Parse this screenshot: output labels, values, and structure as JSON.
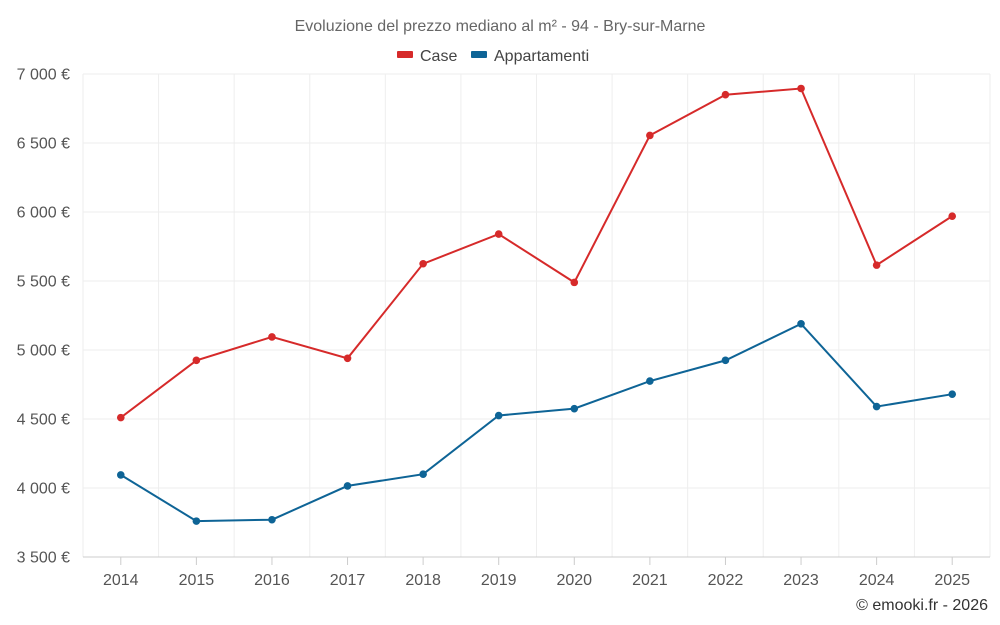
{
  "chart_data": {
    "type": "line",
    "title": "Evoluzione del prezzo mediano al m² - 94 - Bry-sur-Marne",
    "categories": [
      "2014",
      "2015",
      "2016",
      "2017",
      "2018",
      "2019",
      "2020",
      "2021",
      "2022",
      "2023",
      "2024",
      "2025"
    ],
    "series": [
      {
        "name": "Case",
        "color": "#d62a2a",
        "values": [
          4510,
          4925,
          5095,
          4940,
          5625,
          5840,
          5490,
          6555,
          6850,
          6895,
          5615,
          5970
        ]
      },
      {
        "name": "Appartamenti",
        "color": "#0e6496",
        "values": [
          4095,
          3760,
          3770,
          4015,
          4100,
          4525,
          4575,
          4775,
          4925,
          5190,
          4590,
          4680
        ]
      }
    ],
    "ylim": [
      3500,
      7000
    ],
    "yticks": [
      3500,
      4000,
      4500,
      5000,
      5500,
      6000,
      6500,
      7000
    ],
    "ytick_labels": [
      "3 500 €",
      "4 000 €",
      "4 500 €",
      "5 000 €",
      "5 500 €",
      "6 000 €",
      "6 500 €",
      "7 000 €"
    ],
    "xlabel": "",
    "ylabel": "",
    "legend_position": "top-center",
    "grid": true
  },
  "credit": "© emooki.fr - 2026"
}
